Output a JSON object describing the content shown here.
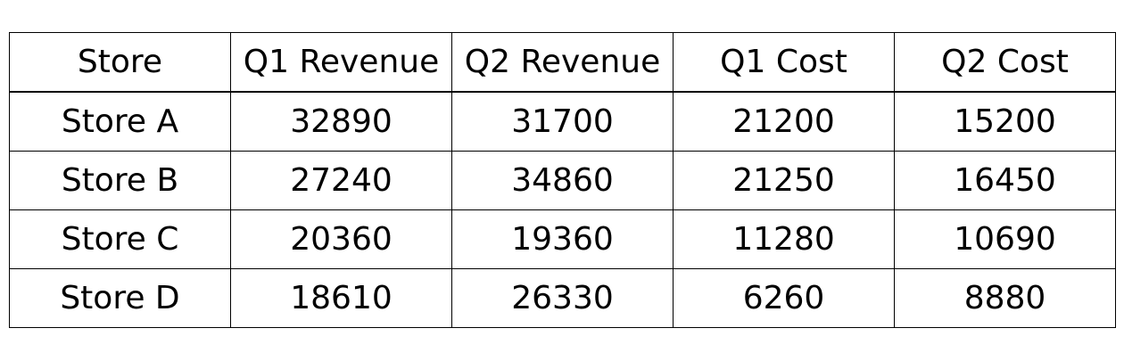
{
  "chart_data": {
    "type": "table",
    "columns": [
      "Store",
      "Q1 Revenue",
      "Q2 Revenue",
      "Q1 Cost",
      "Q2 Cost"
    ],
    "rows": [
      [
        "Store A",
        "32890",
        "31700",
        "21200",
        "15200"
      ],
      [
        "Store B",
        "27240",
        "34860",
        "21250",
        "16450"
      ],
      [
        "Store C",
        "20360",
        "19360",
        "11280",
        "10690"
      ],
      [
        "Store D",
        "18610",
        "26330",
        "6260",
        "8880"
      ]
    ]
  }
}
